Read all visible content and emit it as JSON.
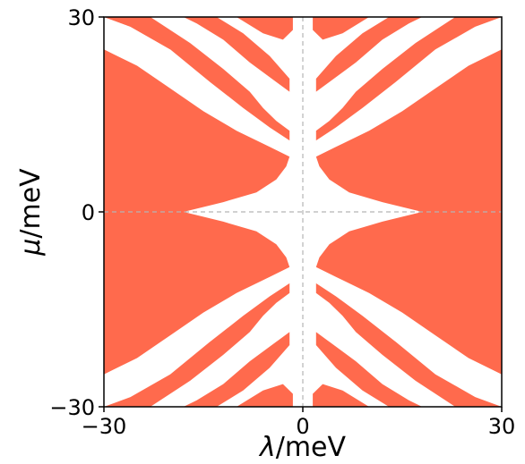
{
  "chart_data": {
    "type": "heatmap",
    "title": "",
    "xlabel": {
      "symbol": "λ",
      "unit": "/meV"
    },
    "ylabel": {
      "symbol": "μ",
      "unit": "/meV"
    },
    "xlim": [
      -30,
      30
    ],
    "ylim": [
      -30,
      30
    ],
    "x_ticks": [
      "−30",
      "0",
      "30"
    ],
    "y_ticks": [
      "−30",
      "0",
      "30"
    ],
    "grid": false,
    "reference_lines": {
      "x": 0,
      "y": 0,
      "style": "dashed",
      "color": "#b4b4b4"
    },
    "fill_color": "#ff6a4d",
    "background_color": "#ffffff",
    "description_regions": "orange = region where condition holds; white = gaps",
    "regions": [
      {
        "name": "left-upper-main",
        "points": [
          [
            -30,
            25
          ],
          [
            -25,
            22.5
          ],
          [
            -20,
            19
          ],
          [
            -15,
            15.5
          ],
          [
            -10,
            12.5
          ],
          [
            -5,
            10
          ],
          [
            -2,
            8.5
          ],
          [
            -2.5,
            7
          ],
          [
            -4,
            5
          ],
          [
            -7,
            3
          ],
          [
            -12,
            1.5
          ],
          [
            -18,
            0
          ],
          [
            -30,
            0
          ]
        ]
      },
      {
        "name": "left-lower-main",
        "points": [
          [
            -30,
            0
          ],
          [
            -18,
            0
          ],
          [
            -12,
            -1.5
          ],
          [
            -7,
            -3
          ],
          [
            -4,
            -5
          ],
          [
            -2.5,
            -7
          ],
          [
            -2,
            -8.5
          ],
          [
            -5,
            -10
          ],
          [
            -10,
            -12.5
          ],
          [
            -15,
            -15.5
          ],
          [
            -20,
            -19
          ],
          [
            -25,
            -22.5
          ],
          [
            -30,
            -25
          ]
        ]
      },
      {
        "name": "right-upper-main",
        "points": [
          [
            30,
            25
          ],
          [
            25,
            22.5
          ],
          [
            20,
            19
          ],
          [
            15,
            15.5
          ],
          [
            10,
            12.5
          ],
          [
            5,
            10
          ],
          [
            2,
            8.5
          ],
          [
            2.5,
            7
          ],
          [
            4,
            5
          ],
          [
            7,
            3
          ],
          [
            12,
            1.5
          ],
          [
            18,
            0
          ],
          [
            30,
            0
          ]
        ]
      },
      {
        "name": "right-lower-main",
        "points": [
          [
            30,
            0
          ],
          [
            18,
            0
          ],
          [
            12,
            -1.5
          ],
          [
            7,
            -3
          ],
          [
            4,
            -5
          ],
          [
            2.5,
            -7
          ],
          [
            2,
            -8.5
          ],
          [
            5,
            -10
          ],
          [
            10,
            -12.5
          ],
          [
            15,
            -15.5
          ],
          [
            20,
            -19
          ],
          [
            25,
            -22.5
          ],
          [
            30,
            -25
          ]
        ]
      },
      {
        "name": "upper-left-band-a",
        "points": [
          [
            -30,
            30
          ],
          [
            -23,
            30
          ],
          [
            -17,
            26
          ],
          [
            -12,
            22
          ],
          [
            -8,
            18.5
          ],
          [
            -6,
            16
          ],
          [
            -4,
            14
          ],
          [
            -2,
            12.5
          ],
          [
            -2,
            11
          ],
          [
            -5,
            13
          ],
          [
            -9,
            16
          ],
          [
            -14,
            20
          ],
          [
            -20,
            25
          ],
          [
            -26,
            28.5
          ]
        ]
      },
      {
        "name": "upper-left-band-b",
        "points": [
          [
            -18,
            30
          ],
          [
            -13,
            30
          ],
          [
            -9,
            27.5
          ],
          [
            -5,
            24
          ],
          [
            -2,
            20.5
          ],
          [
            -2,
            18.5
          ],
          [
            -4,
            20
          ],
          [
            -8,
            23
          ],
          [
            -12,
            26.5
          ],
          [
            -16,
            29
          ]
        ]
      },
      {
        "name": "upper-left-cap",
        "points": [
          [
            -10,
            30
          ],
          [
            -1.5,
            30
          ],
          [
            -1.5,
            28
          ],
          [
            -3,
            26.5
          ],
          [
            -6,
            27.5
          ]
        ]
      },
      {
        "name": "upper-left-thin",
        "points": [
          [
            -30,
            30
          ],
          [
            -26,
            28.5
          ],
          [
            -20,
            25
          ],
          [
            -23,
            30
          ]
        ]
      },
      {
        "name": "upper-right-band-a",
        "points": [
          [
            30,
            30
          ],
          [
            23,
            30
          ],
          [
            17,
            26
          ],
          [
            12,
            22
          ],
          [
            8,
            18.5
          ],
          [
            6,
            16
          ],
          [
            4,
            14
          ],
          [
            2,
            12.5
          ],
          [
            2,
            11
          ],
          [
            5,
            13
          ],
          [
            9,
            16
          ],
          [
            14,
            20
          ],
          [
            20,
            25
          ],
          [
            26,
            28.5
          ]
        ]
      },
      {
        "name": "upper-right-band-b",
        "points": [
          [
            18,
            30
          ],
          [
            13,
            30
          ],
          [
            9,
            27.5
          ],
          [
            5,
            24
          ],
          [
            2,
            20.5
          ],
          [
            2,
            18.5
          ],
          [
            4,
            20
          ],
          [
            8,
            23
          ],
          [
            12,
            26.5
          ],
          [
            16,
            29
          ]
        ]
      },
      {
        "name": "upper-right-cap",
        "points": [
          [
            10,
            30
          ],
          [
            1.5,
            30
          ],
          [
            1.5,
            28
          ],
          [
            3,
            26.5
          ],
          [
            6,
            27.5
          ]
        ]
      },
      {
        "name": "lower-left-band-a",
        "points": [
          [
            -30,
            -30
          ],
          [
            -23,
            -30
          ],
          [
            -17,
            -26
          ],
          [
            -12,
            -22
          ],
          [
            -8,
            -18.5
          ],
          [
            -6,
            -16
          ],
          [
            -4,
            -14
          ],
          [
            -2,
            -12.5
          ],
          [
            -2,
            -11
          ],
          [
            -5,
            -13
          ],
          [
            -9,
            -16
          ],
          [
            -14,
            -20
          ],
          [
            -20,
            -25
          ],
          [
            -26,
            -28.5
          ]
        ]
      },
      {
        "name": "lower-left-band-b",
        "points": [
          [
            -18,
            -30
          ],
          [
            -13,
            -30
          ],
          [
            -9,
            -27.5
          ],
          [
            -5,
            -24
          ],
          [
            -2,
            -20.5
          ],
          [
            -2,
            -18.5
          ],
          [
            -4,
            -20
          ],
          [
            -8,
            -23
          ],
          [
            -12,
            -26.5
          ],
          [
            -16,
            -29
          ]
        ]
      },
      {
        "name": "lower-left-cap",
        "points": [
          [
            -10,
            -30
          ],
          [
            -1.5,
            -30
          ],
          [
            -1.5,
            -28
          ],
          [
            -3,
            -26.5
          ],
          [
            -6,
            -27.5
          ]
        ]
      },
      {
        "name": "lower-right-band-a",
        "points": [
          [
            30,
            -30
          ],
          [
            23,
            -30
          ],
          [
            17,
            -26
          ],
          [
            12,
            -22
          ],
          [
            8,
            -18.5
          ],
          [
            6,
            -16
          ],
          [
            4,
            -14
          ],
          [
            2,
            -12.5
          ],
          [
            2,
            -11
          ],
          [
            5,
            -13
          ],
          [
            9,
            -16
          ],
          [
            14,
            -20
          ],
          [
            20,
            -25
          ],
          [
            26,
            -28.5
          ]
        ]
      },
      {
        "name": "lower-right-band-b",
        "points": [
          [
            18,
            -30
          ],
          [
            13,
            -30
          ],
          [
            9,
            -27.5
          ],
          [
            5,
            -24
          ],
          [
            2,
            -20.5
          ],
          [
            2,
            -18.5
          ],
          [
            4,
            -20
          ],
          [
            8,
            -23
          ],
          [
            12,
            -26.5
          ],
          [
            16,
            -29
          ]
        ]
      },
      {
        "name": "lower-right-cap",
        "points": [
          [
            10,
            -30
          ],
          [
            1.5,
            -30
          ],
          [
            1.5,
            -28
          ],
          [
            3,
            -26.5
          ],
          [
            6,
            -27.5
          ]
        ]
      }
    ]
  }
}
